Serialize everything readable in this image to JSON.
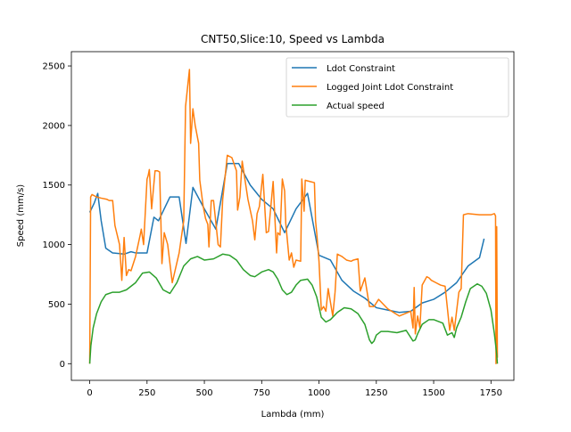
{
  "chart_data": {
    "type": "line",
    "title": "CNT50,Slice:10, Speed vs Lambda",
    "xlabel": "Lambda (mm)",
    "ylabel": "Speed (mm/s)",
    "xlim": [
      -80,
      1850
    ],
    "ylim": [
      -140,
      2620
    ],
    "xticks": [
      0,
      250,
      500,
      750,
      1000,
      1250,
      1500,
      1750
    ],
    "yticks": [
      0,
      500,
      1000,
      1500,
      2000,
      2500
    ],
    "grid": false,
    "legend_position": "top-right",
    "series": [
      {
        "name": "Ldot Constraint",
        "color": "#1f77b4",
        "x": [
          0,
          20,
          35,
          50,
          70,
          100,
          150,
          180,
          200,
          250,
          280,
          300,
          350,
          390,
          420,
          450,
          500,
          550,
          600,
          650,
          700,
          750,
          800,
          850,
          900,
          950,
          1000,
          1050,
          1100,
          1150,
          1200,
          1250,
          1300,
          1350,
          1400,
          1450,
          1500,
          1550,
          1600,
          1650,
          1700,
          1720
        ],
        "y": [
          1270,
          1350,
          1430,
          1200,
          970,
          930,
          920,
          940,
          930,
          930,
          1230,
          1200,
          1400,
          1400,
          1010,
          1480,
          1300,
          1130,
          1680,
          1680,
          1500,
          1380,
          1300,
          1100,
          1300,
          1430,
          910,
          870,
          700,
          610,
          550,
          470,
          450,
          430,
          440,
          510,
          540,
          600,
          680,
          820,
          890,
          1050
        ]
      },
      {
        "name": "Logged Joint Ldot Constraint",
        "color": "#ff7f0e",
        "x": [
          0,
          4,
          10,
          30,
          50,
          75,
          85,
          100,
          110,
          130,
          140,
          150,
          160,
          170,
          180,
          200,
          220,
          225,
          235,
          250,
          255,
          260,
          270,
          285,
          295,
          305,
          315,
          325,
          340,
          360,
          390,
          410,
          418,
          430,
          435,
          440,
          450,
          460,
          475,
          480,
          495,
          505,
          515,
          520,
          530,
          540,
          560,
          570,
          580,
          590,
          600,
          620,
          640,
          645,
          655,
          665,
          690,
          710,
          720,
          730,
          740,
          755,
          770,
          780,
          800,
          815,
          820,
          830,
          840,
          850,
          855,
          870,
          880,
          890,
          900,
          920,
          925,
          935,
          940,
          960,
          980,
          985,
          990,
          1000,
          1010,
          1020,
          1030,
          1040,
          1060,
          1070,
          1080,
          1100,
          1120,
          1140,
          1150,
          1170,
          1180,
          1200,
          1220,
          1240,
          1260,
          1300,
          1350,
          1400,
          1410,
          1415,
          1420,
          1430,
          1440,
          1450,
          1470,
          1480,
          1490,
          1510,
          1530,
          1550,
          1570,
          1580,
          1590,
          1610,
          1620,
          1630,
          1650,
          1700,
          1750,
          1765,
          1770,
          1772,
          1775,
          1778
        ],
        "y": [
          0,
          1400,
          1420,
          1400,
          1390,
          1380,
          1370,
          1370,
          1160,
          1000,
          700,
          1060,
          740,
          790,
          780,
          900,
          1080,
          1130,
          1000,
          1550,
          1580,
          1630,
          1300,
          1620,
          1620,
          1610,
          840,
          1100,
          1000,
          680,
          930,
          1200,
          2160,
          2380,
          2470,
          1850,
          2140,
          2000,
          1850,
          1540,
          1320,
          1220,
          1170,
          980,
          1370,
          1370,
          1000,
          980,
          1380,
          1560,
          1750,
          1730,
          1620,
          1290,
          1400,
          1700,
          1380,
          1200,
          1040,
          1260,
          1320,
          1590,
          1100,
          1110,
          1530,
          930,
          1100,
          1080,
          1550,
          1450,
          1180,
          870,
          930,
          810,
          870,
          860,
          1550,
          1280,
          1540,
          1530,
          1520,
          1200,
          1100,
          860,
          450,
          480,
          440,
          630,
          400,
          600,
          920,
          900,
          870,
          860,
          870,
          880,
          610,
          720,
          480,
          480,
          540,
          460,
          400,
          440,
          300,
          640,
          250,
          400,
          300,
          660,
          730,
          720,
          700,
          680,
          660,
          650,
          280,
          390,
          280,
          600,
          630,
          1250,
          1260,
          1250,
          1250,
          1260,
          1240,
          0,
          1150,
          50
        ]
      },
      {
        "name": "Actual speed",
        "color": "#2ca02c",
        "x": [
          0,
          5,
          15,
          30,
          50,
          70,
          100,
          130,
          160,
          200,
          230,
          260,
          290,
          320,
          350,
          380,
          410,
          440,
          470,
          500,
          540,
          580,
          610,
          640,
          670,
          700,
          720,
          750,
          780,
          800,
          820,
          840,
          860,
          880,
          900,
          920,
          950,
          970,
          990,
          1010,
          1030,
          1050,
          1080,
          1110,
          1140,
          1170,
          1200,
          1220,
          1230,
          1240,
          1250,
          1270,
          1300,
          1340,
          1380,
          1400,
          1410,
          1420,
          1430,
          1450,
          1480,
          1500,
          1540,
          1560,
          1580,
          1590,
          1600,
          1620,
          1640,
          1660,
          1690,
          1710,
          1730,
          1750,
          1765,
          1775,
          1778
        ],
        "y": [
          0,
          150,
          300,
          420,
          520,
          580,
          600,
          600,
          620,
          680,
          760,
          770,
          720,
          620,
          590,
          680,
          820,
          880,
          900,
          870,
          880,
          920,
          910,
          870,
          790,
          740,
          730,
          770,
          790,
          770,
          710,
          620,
          580,
          600,
          660,
          700,
          710,
          660,
          560,
          390,
          350,
          370,
          430,
          470,
          460,
          420,
          330,
          200,
          170,
          190,
          240,
          270,
          270,
          260,
          280,
          220,
          190,
          200,
          250,
          330,
          370,
          370,
          340,
          240,
          260,
          220,
          300,
          390,
          520,
          630,
          670,
          650,
          590,
          450,
          250,
          80,
          0
        ]
      }
    ]
  }
}
